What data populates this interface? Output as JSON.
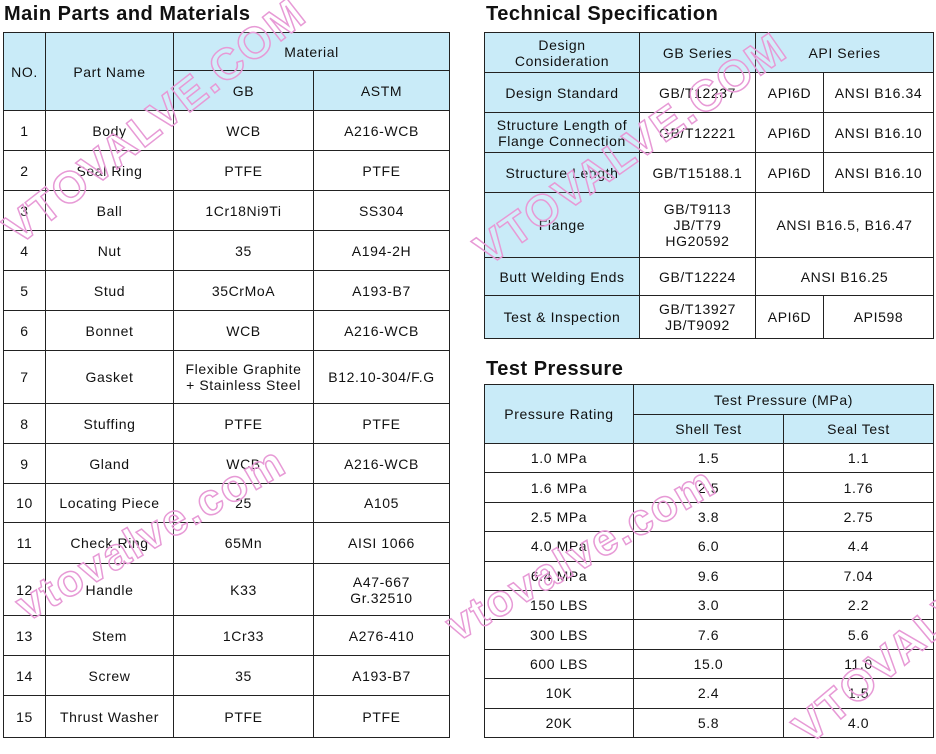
{
  "parts": {
    "title": "Main Parts and Materials",
    "headers": {
      "no": "NO.",
      "part_name": "Part Name",
      "material": "Material",
      "gb": "GB",
      "astm": "ASTM"
    },
    "rows": [
      [
        "1",
        "Body",
        "WCB",
        "A216-WCB"
      ],
      [
        "2",
        "Seal Ring",
        "PTFE",
        "PTFE"
      ],
      [
        "3",
        "Ball",
        "1Cr18Ni9Ti",
        "SS304"
      ],
      [
        "4",
        "Nut",
        "35",
        "A194-2H"
      ],
      [
        "5",
        "Stud",
        "35CrMoA",
        "A193-B7"
      ],
      [
        "6",
        "Bonnet",
        "WCB",
        "A216-WCB"
      ],
      [
        "7",
        "Gasket",
        "Flexible Graphite\n+ Stainless Steel",
        "B12.10-304/F.G"
      ],
      [
        "8",
        "Stuffing",
        "PTFE",
        "PTFE"
      ],
      [
        "9",
        "Gland",
        "WCB",
        "A216-WCB"
      ],
      [
        "10",
        "Locating Piece",
        "25",
        "A105"
      ],
      [
        "11",
        "Check Ring",
        "65Mn",
        "AISI 1066"
      ],
      [
        "12",
        "Handle",
        "K33",
        "A47-667\nGr.32510"
      ],
      [
        "13",
        "Stem",
        "1Cr33",
        "A276-410"
      ],
      [
        "14",
        "Screw",
        "35",
        "A193-B7"
      ],
      [
        "15",
        "Thrust Washer",
        "PTFE",
        "PTFE"
      ]
    ]
  },
  "spec": {
    "title": "Technical Specification",
    "headers": {
      "design": "Design\nConsideration",
      "gb": "GB Series",
      "api": "API Series"
    },
    "rows": [
      [
        "Design Standard",
        "GB/T12237",
        "API6D",
        "ANSI B16.34"
      ],
      [
        "Structure Length of\nFlange Connection",
        "GB/T12221",
        "API6D",
        "ANSI B16.10"
      ],
      [
        "Structure Length",
        "GB/T15188.1",
        "API6D",
        "ANSI B16.10"
      ],
      [
        "Flange",
        "GB/T9113\nJB/T79\nHG20592",
        "ANSI B16.5, B16.47"
      ],
      [
        "Butt Welding Ends",
        "GB/T12224",
        "ANSI B16.25"
      ],
      [
        "Test & Inspection",
        "GB/T13927\nJB/T9092",
        "API6D",
        "API598"
      ]
    ]
  },
  "pressure": {
    "title": "Test Pressure",
    "headers": {
      "rating": "Pressure Rating",
      "test": "Test Pressure (MPa)",
      "shell": "Shell Test",
      "seal": "Seal Test"
    },
    "rows": [
      [
        "1.0 MPa",
        "1.5",
        "1.1"
      ],
      [
        "1.6 MPa",
        "2.5",
        "1.76"
      ],
      [
        "2.5 MPa",
        "3.8",
        "2.75"
      ],
      [
        "4.0 MPa",
        "6.0",
        "4.4"
      ],
      [
        "6.4 MPa",
        "9.6",
        "7.04"
      ],
      [
        "150 LBS",
        "3.0",
        "2.2"
      ],
      [
        "300 LBS",
        "7.6",
        "5.6"
      ],
      [
        "600 LBS",
        "15.0",
        "11.0"
      ],
      [
        "10K",
        "2.4",
        "1.5"
      ],
      [
        "20K",
        "5.8",
        "4.0"
      ]
    ]
  },
  "watermarks": [
    "VTOVALVE.COM",
    "vtovalve.com",
    "VTOVALVE.COM",
    "vtovalve.com",
    "VTOVALVE.COM"
  ]
}
